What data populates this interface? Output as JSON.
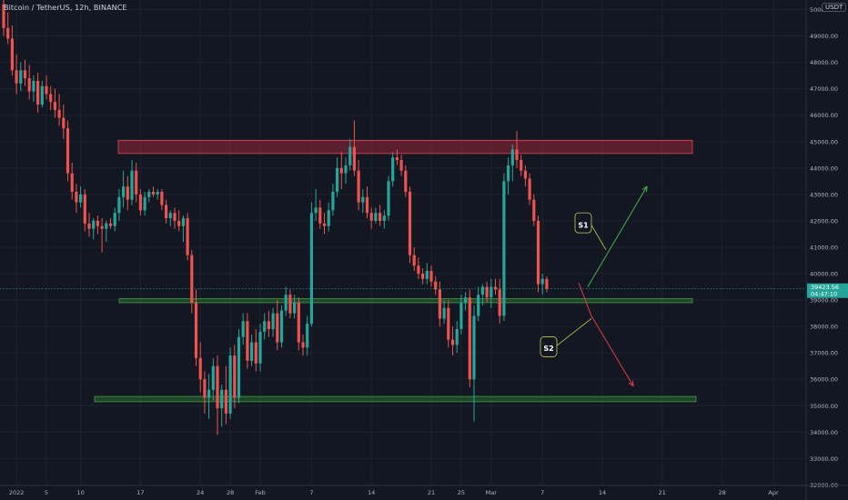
{
  "header": {
    "symbol": "Bitcoin / TetherUS, 12h, BINANCE",
    "unit": "USDT"
  },
  "price_tag": {
    "price": "39423.56",
    "timer": "04:47:10",
    "color": "#26a69a"
  },
  "colors": {
    "up": "#26a69a",
    "down": "#ef5350",
    "background": "#131722",
    "resistance": "#b2283a",
    "support": "#2e7d32",
    "bull_arrow": "#4caf50",
    "bear_arrow": "#e53945"
  },
  "chart_data": {
    "type": "candlestick",
    "title": "",
    "ylim": [
      31600,
      50600
    ],
    "y_ticks": [
      32000,
      33000,
      34000,
      35000,
      36000,
      37000,
      38000,
      39000,
      40000,
      41000,
      42000,
      43000,
      44000,
      45000,
      46000,
      47000,
      48000,
      49000,
      50000
    ],
    "x_ticks": [
      "2022",
      "5",
      "10",
      "17",
      "24",
      "28",
      "Feb",
      "7",
      "14",
      "21",
      "25",
      "Mar",
      "7",
      "14",
      "21",
      "28",
      "Apr"
    ],
    "x_tick_index": [
      3,
      10,
      18,
      32,
      46,
      53,
      60,
      72,
      86,
      100,
      107,
      114,
      126,
      140,
      154,
      168,
      180
    ],
    "grid": true,
    "candles": [
      [
        50200,
        50800,
        49000,
        49300
      ],
      [
        49300,
        49900,
        48700,
        48900
      ],
      [
        48900,
        49400,
        47500,
        47700
      ],
      [
        47700,
        48300,
        46800,
        47200
      ],
      [
        47200,
        48000,
        46900,
        47700
      ],
      [
        47700,
        48100,
        47100,
        47400
      ],
      [
        47400,
        47900,
        46600,
        46900
      ],
      [
        46900,
        47500,
        46500,
        47300
      ],
      [
        47300,
        47600,
        46100,
        46400
      ],
      [
        46400,
        47300,
        46300,
        47100
      ],
      [
        47100,
        47500,
        46600,
        46800
      ],
      [
        46800,
        47100,
        46200,
        46500
      ],
      [
        46500,
        47000,
        45900,
        46200
      ],
      [
        46200,
        46800,
        45600,
        45900
      ],
      [
        45900,
        46400,
        45100,
        45500
      ],
      [
        45500,
        45800,
        43500,
        43800
      ],
      [
        43800,
        44200,
        42800,
        43100
      ],
      [
        43100,
        43400,
        42300,
        42700
      ],
      [
        42700,
        43300,
        42500,
        43000
      ],
      [
        43000,
        43200,
        41600,
        41900
      ],
      [
        41900,
        42300,
        41400,
        41700
      ],
      [
        41700,
        42100,
        41300,
        42000
      ],
      [
        42000,
        42200,
        41500,
        41800
      ],
      [
        41800,
        42100,
        40800,
        41700
      ],
      [
        41700,
        42000,
        41200,
        41900
      ],
      [
        41900,
        42100,
        41700,
        41800
      ],
      [
        41800,
        42500,
        41600,
        42300
      ],
      [
        42300,
        43200,
        42000,
        42900
      ],
      [
        42900,
        43900,
        42500,
        43300
      ],
      [
        43300,
        43700,
        42400,
        42800
      ],
      [
        42800,
        44300,
        42600,
        43900
      ],
      [
        43900,
        44200,
        42700,
        43000
      ],
      [
        43000,
        43200,
        42200,
        42400
      ],
      [
        42400,
        43100,
        42200,
        42900
      ],
      [
        42900,
        43200,
        42700,
        43100
      ],
      [
        43100,
        43300,
        42900,
        43000
      ],
      [
        43000,
        43200,
        42800,
        43100
      ],
      [
        43100,
        43200,
        42400,
        42600
      ],
      [
        42600,
        42800,
        41900,
        42100
      ],
      [
        42100,
        42400,
        41800,
        42300
      ],
      [
        42300,
        42500,
        41700,
        42000
      ],
      [
        42000,
        42400,
        41600,
        41800
      ],
      [
        41800,
        42200,
        41200,
        42100
      ],
      [
        42100,
        42300,
        40500,
        40700
      ],
      [
        40700,
        40900,
        38500,
        38900
      ],
      [
        38900,
        39400,
        36500,
        36800
      ],
      [
        36800,
        37400,
        35500,
        36000
      ],
      [
        36000,
        36300,
        34700,
        35300
      ],
      [
        35300,
        36200,
        34500,
        35600
      ],
      [
        35600,
        36800,
        35200,
        36500
      ],
      [
        36500,
        36900,
        33900,
        34900
      ],
      [
        34900,
        35800,
        34200,
        35600
      ],
      [
        35600,
        36500,
        34300,
        34700
      ],
      [
        34700,
        37200,
        34500,
        36900
      ],
      [
        36900,
        37300,
        34900,
        35300
      ],
      [
        35300,
        37900,
        35100,
        37600
      ],
      [
        37600,
        38500,
        37300,
        38200
      ],
      [
        38200,
        38500,
        36400,
        36700
      ],
      [
        36700,
        37700,
        36500,
        37400
      ],
      [
        37400,
        37900,
        36300,
        36600
      ],
      [
        36600,
        38100,
        36300,
        37800
      ],
      [
        37800,
        38500,
        37500,
        38200
      ],
      [
        38200,
        38600,
        37600,
        37900
      ],
      [
        37900,
        38700,
        37600,
        38500
      ],
      [
        38500,
        39000,
        37100,
        37400
      ],
      [
        37400,
        38800,
        37200,
        38600
      ],
      [
        38600,
        39500,
        38400,
        39200
      ],
      [
        39200,
        39400,
        38300,
        38500
      ],
      [
        38500,
        39200,
        38300,
        38900
      ],
      [
        38900,
        39100,
        37100,
        37400
      ],
      [
        37400,
        37700,
        36900,
        37200
      ],
      [
        37200,
        38400,
        36900,
        38100
      ],
      [
        38100,
        42700,
        38000,
        42300
      ],
      [
        42300,
        43200,
        42000,
        42500
      ],
      [
        42500,
        42800,
        41700,
        41900
      ],
      [
        41900,
        42300,
        41500,
        41800
      ],
      [
        41800,
        42700,
        41600,
        42400
      ],
      [
        42400,
        43400,
        42200,
        43100
      ],
      [
        43100,
        44400,
        42900,
        44000
      ],
      [
        44000,
        44600,
        43200,
        43800
      ],
      [
        43800,
        44400,
        43400,
        44100
      ],
      [
        44100,
        45100,
        43900,
        44800
      ],
      [
        44800,
        45800,
        43700,
        43900
      ],
      [
        43900,
        44300,
        42400,
        42700
      ],
      [
        42700,
        43200,
        42300,
        42900
      ],
      [
        42900,
        43300,
        42100,
        42300
      ],
      [
        42300,
        42500,
        41700,
        42000
      ],
      [
        42000,
        42500,
        41900,
        42300
      ],
      [
        42300,
        42600,
        41800,
        42000
      ],
      [
        42000,
        42400,
        41700,
        42200
      ],
      [
        42200,
        43700,
        42000,
        43500
      ],
      [
        43500,
        44600,
        43300,
        44400
      ],
      [
        44400,
        44700,
        44100,
        44300
      ],
      [
        44300,
        44500,
        43700,
        43900
      ],
      [
        43900,
        44100,
        42900,
        43100
      ],
      [
        43100,
        43300,
        40400,
        40700
      ],
      [
        40700,
        41000,
        40100,
        40300
      ],
      [
        40300,
        40600,
        39800,
        40000
      ],
      [
        40000,
        40200,
        39600,
        39800
      ],
      [
        39800,
        40400,
        39600,
        40100
      ],
      [
        40100,
        40300,
        39500,
        39700
      ],
      [
        39700,
        39900,
        39200,
        39400
      ],
      [
        39400,
        39700,
        38000,
        38300
      ],
      [
        38300,
        39000,
        38100,
        38700
      ],
      [
        38700,
        39000,
        37200,
        37500
      ],
      [
        37500,
        38000,
        36900,
        37300
      ],
      [
        37300,
        38200,
        37000,
        37900
      ],
      [
        37900,
        39200,
        37700,
        38900
      ],
      [
        38900,
        39300,
        38600,
        39100
      ],
      [
        39100,
        39400,
        35700,
        36000
      ],
      [
        36000,
        38800,
        34400,
        38400
      ],
      [
        38400,
        39500,
        38200,
        39200
      ],
      [
        39200,
        39600,
        38800,
        39500
      ],
      [
        39500,
        39700,
        38900,
        39100
      ],
      [
        39100,
        39800,
        38700,
        39500
      ],
      [
        39500,
        39800,
        39200,
        39400
      ],
      [
        39400,
        39800,
        38100,
        38400
      ],
      [
        38400,
        43800,
        38200,
        43500
      ],
      [
        43500,
        44400,
        43000,
        44100
      ],
      [
        44100,
        44900,
        43500,
        44700
      ],
      [
        44700,
        45400,
        44000,
        44300
      ],
      [
        44300,
        44500,
        43700,
        43900
      ],
      [
        43900,
        44100,
        43300,
        43600
      ],
      [
        43600,
        43800,
        42600,
        42800
      ],
      [
        42800,
        43000,
        41800,
        42000
      ],
      [
        42000,
        42200,
        39300,
        39600
      ],
      [
        39600,
        40000,
        39200,
        39800
      ],
      [
        39800,
        39900,
        39300,
        39424
      ]
    ]
  },
  "annotations": {
    "s1_label": "S1",
    "s2_label": "S2"
  }
}
